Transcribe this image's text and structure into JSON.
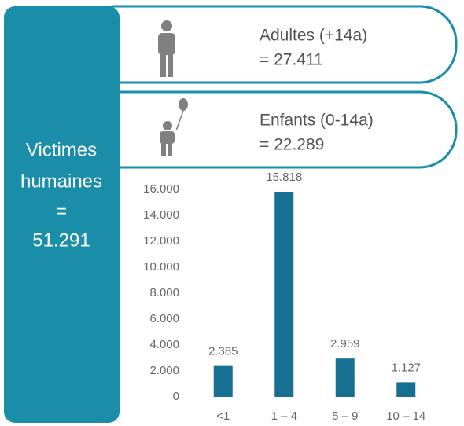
{
  "panel": {
    "lines": [
      "Victimes",
      "humaines",
      "=",
      "51.291"
    ]
  },
  "cards": [
    {
      "label": "Adultes (+14a)",
      "value": "= 27.411"
    },
    {
      "label": "Enfants (0-14a)",
      "value": "= 22.289"
    }
  ],
  "chart_data": {
    "type": "bar",
    "categories": [
      "<1",
      "1 – 4",
      "5 – 9",
      "10 – 14"
    ],
    "values": [
      2385,
      15818,
      2959,
      1127
    ],
    "value_labels": [
      "2.385",
      "15.818",
      "2.959",
      "1.127"
    ],
    "color": "#176f92",
    "ylim": [
      0,
      16000
    ],
    "yticks": [
      0,
      {
        "value": 2000,
        "label": "2.000"
      },
      {
        "value": 4000,
        "label": "4.000"
      },
      {
        "value": 6000,
        "label": "6.000"
      },
      {
        "value": 8000,
        "label": "8.000"
      },
      {
        "value": 10000,
        "label": "10.000"
      },
      {
        "value": 12000,
        "label": "12.000"
      },
      {
        "value": 14000,
        "label": "14.000"
      },
      {
        "value": 16000,
        "label": "16.000"
      }
    ],
    "grid": false
  }
}
